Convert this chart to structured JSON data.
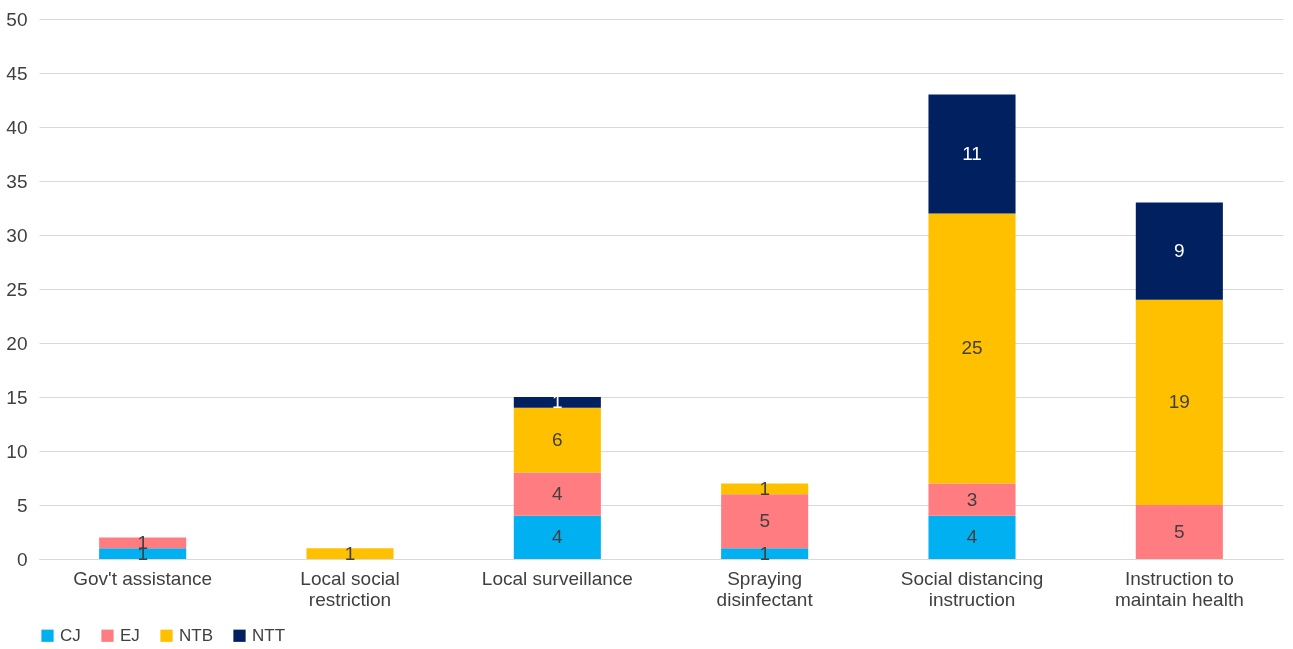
{
  "chart_data": {
    "type": "bar",
    "stacked": true,
    "categories": [
      "Gov't assistance",
      "Local social restriction",
      "Local surveillance",
      "Spraying disinfectant",
      "Social distancing instruction",
      "Instruction to maintain health"
    ],
    "series": [
      {
        "name": "CJ",
        "color": "#00b0f0",
        "values": [
          1,
          null,
          4,
          1,
          4,
          null
        ]
      },
      {
        "name": "EJ",
        "color": "#ff7c80",
        "values": [
          1,
          null,
          4,
          5,
          3,
          5
        ]
      },
      {
        "name": "NTB",
        "color": "#ffc000",
        "values": [
          null,
          1,
          6,
          1,
          25,
          19
        ]
      },
      {
        "name": "NTT",
        "color": "#002060",
        "values": [
          null,
          null,
          1,
          null,
          11,
          9
        ]
      }
    ],
    "ylim": [
      0,
      50
    ],
    "yticks": [
      0,
      5,
      10,
      15,
      20,
      25,
      30,
      35,
      40,
      45,
      50
    ],
    "grid": "y",
    "legend": "bottom",
    "data_labels": true
  }
}
